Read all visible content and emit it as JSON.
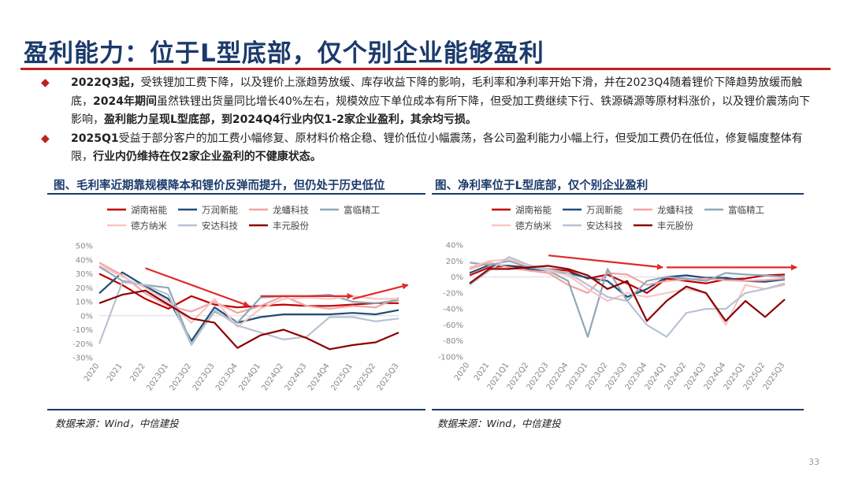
{
  "slide": {
    "title": "盈利能力：位于L型底部，仅个别企业能够盈利",
    "page_number": "33",
    "bullets": [
      [
        {
          "t": "2022Q3起，",
          "b": true
        },
        {
          "t": "受铁锂加工费下降，以及锂价上涨趋势放缓、库存收益下降的影响，毛利率和净利率开始下滑，并在2023Q4随着锂价下降趋势放缓而触底，",
          "b": false
        },
        {
          "t": "2024年期间",
          "b": true
        },
        {
          "t": "虽然铁锂出货量同比增长40%左右，规模效应下单位成本有所下降，但受加工费继续下行、铁源磷源等原材料涨价，以及锂价震荡向下影响，",
          "b": false
        },
        {
          "t": "盈利能力呈现L型底部，到2024Q4行业内仅1-2家企业盈利，其余均亏损。",
          "b": true
        }
      ],
      [
        {
          "t": "2025Q1",
          "b": true
        },
        {
          "t": "受益于部分客户的加工费小幅修复、原材料价格企稳、锂价低位小幅震荡，各公司盈利能力小幅上行，但受加工费仍在低位，修复幅度整体有限，",
          "b": false
        },
        {
          "t": "行业内仍维持在仅2家企业盈利的不健康状态。",
          "b": true
        }
      ]
    ]
  },
  "colors": {
    "series": [
      "#c00000",
      "#1f4e79",
      "#f4a3a3",
      "#8ea9b8",
      "#f8c4c4",
      "#b8c2d4",
      "#8b0000"
    ],
    "arrow": "#e02a2a",
    "axis_text": "#888888",
    "gridline": "#d9d9d9"
  },
  "chart_data": [
    {
      "type": "line",
      "caption": "图、毛利率近期靠规模降本和锂价反弹而提升，但仍处于历史低位",
      "source": "数据来源：Wind，中信建投",
      "legend_position": "top",
      "ylim": [
        -30,
        50
      ],
      "yticks": [
        50,
        40,
        30,
        20,
        10,
        0,
        -10,
        -20,
        -30
      ],
      "ytick_labels": [
        "50%",
        "40%",
        "30%",
        "20%",
        "10%",
        "0%",
        "-10%",
        "-20%",
        "-30%"
      ],
      "x": [
        "2020",
        "2021",
        "2022",
        "2023Q1",
        "2023Q2",
        "2023Q3",
        "2023Q4",
        "2024Q1",
        "2024Q2",
        "2024Q3",
        "2024Q4",
        "2025Q1",
        "2025Q2",
        "2025Q3"
      ],
      "xtick_labels": [
        "2020",
        "2021",
        "2022",
        "2023Q1",
        "2023Q2",
        "2023Q3",
        "2023Q4",
        "2024Q1",
        "2024Q2",
        "2024Q3",
        "2024Q4",
        "2025Q1",
        "2025Q2",
        "2025Q3"
      ],
      "series": [
        {
          "name": "湖南裕能",
          "values": [
            30,
            22,
            12,
            5,
            14,
            8,
            6,
            7,
            8,
            7,
            7,
            8,
            9,
            9
          ]
        },
        {
          "name": "万润新能",
          "values": [
            16,
            31,
            21,
            12,
            -18,
            6,
            -5,
            -1,
            1,
            1,
            1,
            2,
            1,
            4
          ]
        },
        {
          "name": "龙蟠科技",
          "values": [
            38,
            29,
            16,
            7,
            3,
            10,
            2,
            7,
            14,
            7,
            5,
            7,
            6,
            13
          ]
        },
        {
          "name": "富临精工",
          "values": [
            35,
            25,
            22,
            20,
            -20,
            3,
            -5,
            13,
            14,
            14,
            15,
            10,
            9,
            11
          ]
        },
        {
          "name": "德方纳米",
          "values": [
            36,
            28,
            20,
            10,
            -5,
            12,
            -8,
            5,
            12,
            13,
            12,
            14,
            12,
            12
          ]
        },
        {
          "name": "安达科技",
          "values": [
            -20,
            24,
            22,
            15,
            -21,
            4,
            -7,
            -12,
            -17,
            -15,
            -1,
            -1,
            -4,
            -2
          ]
        },
        {
          "name": "丰元股份",
          "values": [
            9,
            15,
            18,
            8,
            -2,
            -5,
            -23,
            -14,
            -10,
            -16,
            -24,
            -21,
            -19,
            -12
          ]
        }
      ],
      "arrows": [
        {
          "from": [
            2,
            34
          ],
          "to": [
            6.5,
            7
          ]
        },
        {
          "from": [
            7,
            14
          ],
          "to": [
            11,
            14
          ]
        },
        {
          "from": [
            11,
            12
          ],
          "to": [
            13.4,
            22
          ]
        }
      ]
    },
    {
      "type": "line",
      "caption": "图、净利率位于L型底部，仅个别企业盈利",
      "source": "数据来源：Wind，中信建投",
      "legend_position": "top",
      "ylim": [
        -100,
        40
      ],
      "yticks": [
        40,
        20,
        0,
        -20,
        -40,
        -60,
        -80,
        -100
      ],
      "ytick_labels": [
        "40%",
        "20%",
        "0%",
        "-20%",
        "-40%",
        "-60%",
        "-80%",
        "-100%"
      ],
      "x": [
        "2020",
        "2021",
        "2021Q1",
        "2022Q2",
        "2022Q3",
        "2022Q4",
        "2023Q1",
        "2023Q2",
        "2023Q3",
        "2023Q4",
        "2024Q1",
        "2024Q2",
        "2024Q3",
        "2024Q4",
        "2025Q1",
        "2025Q2",
        "2025Q3"
      ],
      "xtick_labels": [
        "2020",
        "2021",
        "2021Q1",
        "2022Q2",
        "2022Q3",
        "2022Q4",
        "2023Q1",
        "2023Q2",
        "2023Q3",
        "2023Q4",
        "2024Q1",
        "2024Q2",
        "2024Q3",
        "2024Q4",
        "2025Q1",
        "2025Q2",
        "2025Q3"
      ],
      "series": [
        {
          "name": "湖南裕能",
          "values": [
            2,
            12,
            14,
            12,
            10,
            8,
            -2,
            3,
            -8,
            -20,
            -2,
            -5,
            -8,
            -3,
            -2,
            2,
            3
          ]
        },
        {
          "name": "万润新能",
          "values": [
            5,
            15,
            14,
            10,
            8,
            5,
            -1,
            -5,
            -25,
            -15,
            0,
            2,
            -1,
            -1,
            -5,
            -6,
            -3
          ]
        },
        {
          "name": "龙蟠科技",
          "values": [
            10,
            18,
            12,
            8,
            5,
            -10,
            -20,
            5,
            3,
            -10,
            -5,
            -3,
            -2,
            -4,
            -5,
            -4,
            -2
          ]
        },
        {
          "name": "富临精工",
          "values": [
            18,
            15,
            20,
            12,
            8,
            -5,
            -75,
            10,
            -30,
            -5,
            0,
            -2,
            -5,
            5,
            3,
            2,
            0
          ]
        },
        {
          "name": "德方纳米",
          "values": [
            12,
            20,
            22,
            15,
            8,
            2,
            -15,
            -30,
            -20,
            -25,
            -20,
            -15,
            -20,
            -60,
            -10,
            -15,
            -10
          ]
        },
        {
          "name": "安达科技",
          "values": [
            -10,
            8,
            25,
            15,
            10,
            5,
            -10,
            -25,
            -30,
            -60,
            -75,
            -45,
            -40,
            -40,
            -20,
            -15,
            -8
          ]
        },
        {
          "name": "丰元股份",
          "values": [
            -8,
            10,
            10,
            12,
            14,
            10,
            2,
            -15,
            -5,
            -55,
            -30,
            -12,
            -20,
            -55,
            -30,
            -50,
            -28
          ]
        }
      ],
      "arrows": [
        {
          "from": [
            4,
            27
          ],
          "to": [
            9.8,
            12
          ]
        },
        {
          "from": [
            10,
            12
          ],
          "to": [
            16.6,
            12
          ]
        }
      ]
    }
  ]
}
